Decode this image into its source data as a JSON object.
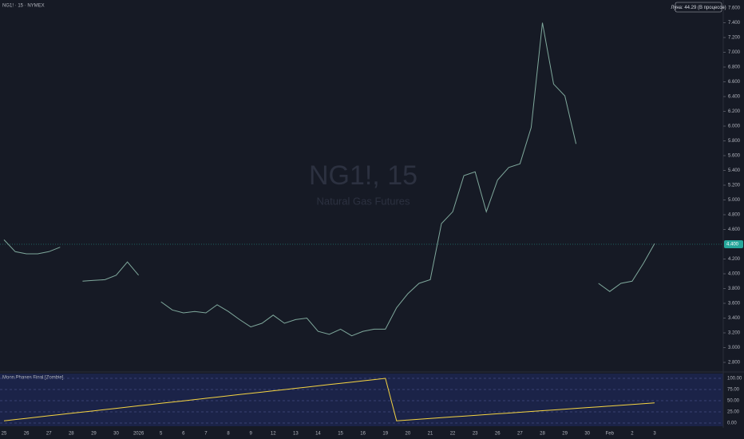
{
  "chart_data": {
    "type": "line",
    "title": "NG1! · 15 · NYMEX",
    "subtitle": "Natural Gas Futures",
    "annotation": "Луна: 44.29 (В процессе)",
    "current_price": {
      "value": 4.4,
      "label": "4.400"
    },
    "categories": [
      "25",
      null,
      "26",
      null,
      "27",
      null,
      "28",
      null,
      "29",
      null,
      "30",
      null,
      "2026",
      null,
      "5",
      null,
      "6",
      null,
      "7",
      null,
      "8",
      null,
      "9",
      null,
      "12",
      null,
      "13",
      null,
      "14",
      null,
      "15",
      null,
      "16",
      null,
      "19",
      null,
      "20",
      null,
      "21",
      null,
      "22",
      null,
      "23",
      null,
      "26",
      null,
      "27",
      null,
      "28",
      null,
      "29",
      null,
      "30",
      null,
      "Feb",
      null,
      "2",
      null,
      "3"
    ],
    "series": [
      {
        "name": "NG1!, 15",
        "color": "#7fa89c",
        "values": [
          4.46,
          4.3,
          4.27,
          4.27,
          4.3,
          4.36,
          null,
          3.9,
          3.91,
          3.92,
          3.98,
          4.16,
          3.98,
          null,
          3.62,
          3.51,
          3.47,
          3.49,
          3.47,
          3.58,
          3.49,
          3.38,
          3.28,
          3.33,
          3.44,
          3.33,
          3.38,
          3.4,
          3.22,
          3.18,
          3.25,
          3.16,
          3.22,
          3.25,
          3.25,
          3.54,
          3.73,
          3.87,
          3.92,
          4.68,
          4.84,
          5.33,
          5.38,
          4.84,
          5.27,
          5.44,
          5.49,
          5.98,
          7.4,
          6.57,
          6.41,
          5.76,
          null,
          3.87,
          3.76,
          3.87,
          3.9,
          4.14,
          4.41
        ]
      },
      {
        "name": "Moon Phases Final [Zombie]",
        "color": "#f5d442",
        "axis": "y2",
        "values": [
          5,
          7.8,
          10.6,
          13.4,
          16.2,
          19,
          21.8,
          24.6,
          27.4,
          30.1,
          32.9,
          35.7,
          38.5,
          41.3,
          44.1,
          46.9,
          49.7,
          52.5,
          55.3,
          58.1,
          60.9,
          63.7,
          66.5,
          69.3,
          72.1,
          74.9,
          77.6,
          80.4,
          83.2,
          86,
          88.8,
          91.6,
          94.4,
          97.2,
          100,
          5,
          6.7,
          8.5,
          10.2,
          12,
          13.7,
          15.4,
          17.2,
          18.9,
          20.7,
          22.4,
          24.1,
          25.9,
          27.6,
          29.3,
          31.1,
          32.8,
          34.6,
          36.3,
          38,
          39.8,
          41.5,
          43.3,
          45
        ]
      }
    ],
    "ylim": [
      2.8,
      7.6
    ],
    "yticks": [
      {
        "value": 7.6,
        "label": "7.600"
      },
      {
        "value": 7.4,
        "label": "7.400"
      },
      {
        "value": 7.2,
        "label": "7.200"
      },
      {
        "value": 7.0,
        "label": "7.000"
      },
      {
        "value": 6.8,
        "label": "6.800"
      },
      {
        "value": 6.6,
        "label": "6.600"
      },
      {
        "value": 6.4,
        "label": "6.400"
      },
      {
        "value": 6.2,
        "label": "6.200"
      },
      {
        "value": 6.0,
        "label": "6.000"
      },
      {
        "value": 5.8,
        "label": "5.800"
      },
      {
        "value": 5.6,
        "label": "5.600"
      },
      {
        "value": 5.4,
        "label": "5.400"
      },
      {
        "value": 5.2,
        "label": "5.200"
      },
      {
        "value": 5.0,
        "label": "5.000"
      },
      {
        "value": 4.8,
        "label": "4.800"
      },
      {
        "value": 4.6,
        "label": "4.600"
      },
      {
        "value": 4.2,
        "label": "4.200"
      },
      {
        "value": 4.0,
        "label": "4.000"
      },
      {
        "value": 3.8,
        "label": "3.800"
      },
      {
        "value": 3.6,
        "label": "3.600"
      },
      {
        "value": 3.4,
        "label": "3.400"
      },
      {
        "value": 3.2,
        "label": "3.200"
      },
      {
        "value": 3.0,
        "label": "3.000"
      },
      {
        "value": 2.8,
        "label": "2.800"
      }
    ],
    "y2lim": [
      0,
      100
    ],
    "y2ticks": [
      {
        "value": 100,
        "label": "100.00"
      },
      {
        "value": 75,
        "label": "75.00"
      },
      {
        "value": 50,
        "label": "50.00"
      },
      {
        "value": 25,
        "label": "25.00"
      },
      {
        "value": 0,
        "label": "0.00"
      }
    ]
  }
}
